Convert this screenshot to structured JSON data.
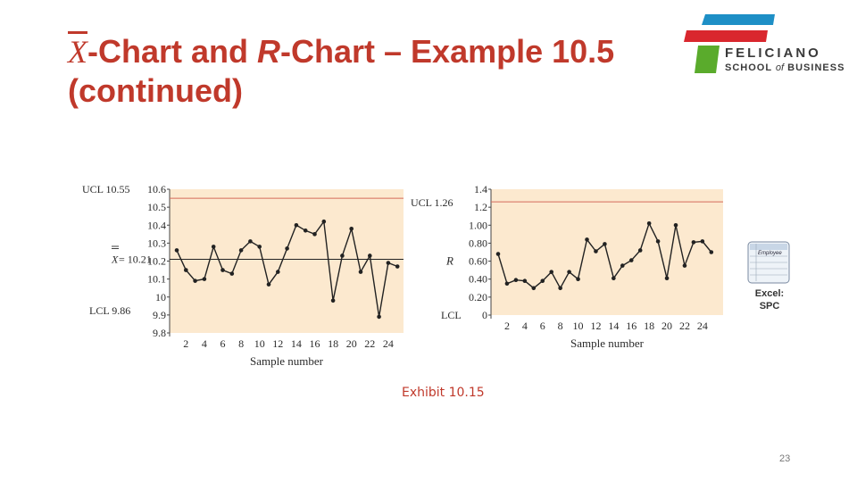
{
  "slide": {
    "title_xbar": "X",
    "title_part1": "-Chart and ",
    "title_r": "R",
    "title_part2": "-Chart – Example 10.5 (continued)",
    "exhibit": "Exhibit 10.15",
    "page_number": "23"
  },
  "logo": {
    "name": "FELICIANO",
    "sub_prefix": "SCHOOL ",
    "sub_of": "of",
    "sub_suffix": " BUSINESS",
    "colors": {
      "red": "#d9272e",
      "blue": "#1e8fc6",
      "green": "#5aab2c"
    }
  },
  "excel_icon": {
    "sheet_title": "Employee",
    "label_line1": "Excel:",
    "label_line2": "SPC"
  },
  "colors": {
    "title": "#c0392b",
    "plot_bg": "#fce9cf",
    "control_limit": "#d46a5a",
    "center_line": "#222222",
    "series": "#222222"
  },
  "chart_data": [
    {
      "type": "line",
      "name": "xbar-chart",
      "xlabel": "Sample number",
      "ylabel": "",
      "x": [
        1,
        2,
        3,
        4,
        5,
        6,
        7,
        8,
        9,
        10,
        11,
        12,
        13,
        14,
        15,
        16,
        17,
        18,
        19,
        20,
        21,
        22,
        23,
        24,
        25
      ],
      "values": [
        10.26,
        10.15,
        10.09,
        10.1,
        10.28,
        10.15,
        10.13,
        10.26,
        10.31,
        10.28,
        10.07,
        10.14,
        10.27,
        10.4,
        10.37,
        10.35,
        10.42,
        9.98,
        10.23,
        10.38,
        10.14,
        10.23,
        9.89,
        10.19,
        10.17
      ],
      "xticks": [
        "2",
        "4",
        "6",
        "8",
        "10",
        "12",
        "14",
        "16",
        "18",
        "20",
        "22",
        "24"
      ],
      "yticks": [
        "10.6",
        "10.5",
        "10.4",
        "10.3",
        "10.2",
        "10.1",
        "10",
        "9.9",
        "9.8"
      ],
      "ylim": [
        9.8,
        10.6
      ],
      "ucl": 10.55,
      "center": 10.21,
      "lcl": 9.86,
      "ucl_label": "UCL 10.55",
      "center_label_symbol": "X",
      "center_label_value": " = 10.21",
      "lcl_label": "LCL 9.86",
      "grid": false
    },
    {
      "type": "line",
      "name": "r-chart",
      "xlabel": "Sample number",
      "ylabel": "R",
      "x": [
        1,
        2,
        3,
        4,
        5,
        6,
        7,
        8,
        9,
        10,
        11,
        12,
        13,
        14,
        15,
        16,
        17,
        18,
        19,
        20,
        21,
        22,
        23,
        24,
        25
      ],
      "values": [
        0.68,
        0.35,
        0.39,
        0.38,
        0.3,
        0.38,
        0.48,
        0.3,
        0.48,
        0.4,
        0.84,
        0.71,
        0.79,
        0.41,
        0.55,
        0.61,
        0.72,
        1.02,
        0.82,
        0.41,
        1.0,
        0.55,
        0.81,
        0.82,
        0.7
      ],
      "xticks": [
        "2",
        "4",
        "6",
        "8",
        "10",
        "12",
        "14",
        "16",
        "18",
        "20",
        "22",
        "24"
      ],
      "yticks": [
        "1.4",
        "1.2",
        "1.00",
        "0.80",
        "0.60",
        "0.40",
        "0.20",
        "0"
      ],
      "ylim": [
        0,
        1.4
      ],
      "ucl": 1.26,
      "lcl": 0,
      "ucl_label": "UCL 1.26",
      "lcl_label": "LCL",
      "grid": false
    }
  ]
}
